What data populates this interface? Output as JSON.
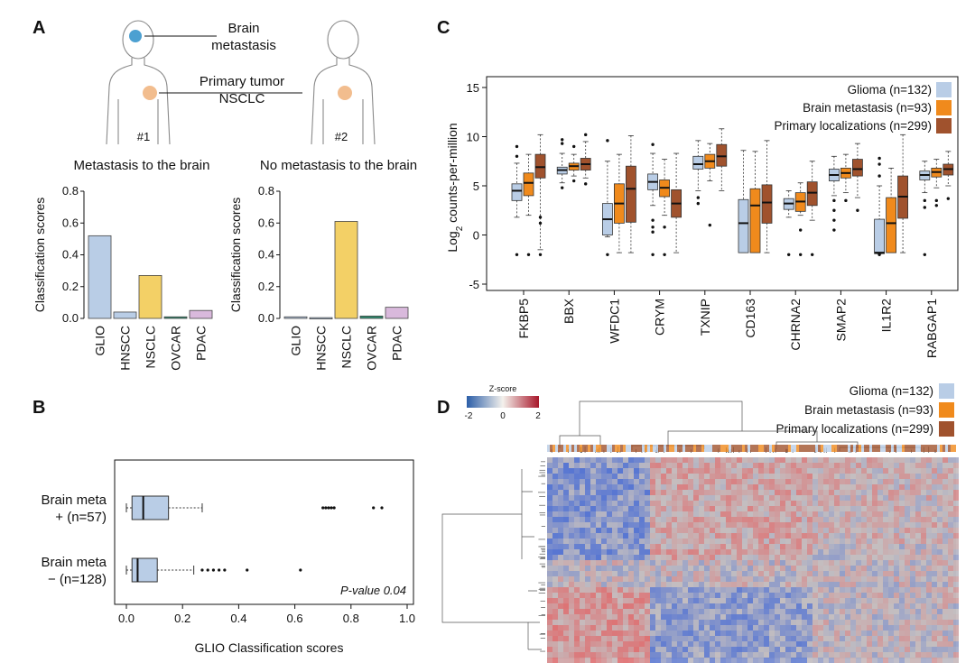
{
  "colors": {
    "glioma": "#b9cde6",
    "brain_meta": "#f08a1c",
    "primary": "#a0522d",
    "glio_bar": "#b9cde6",
    "hnscc_bar": "#b9cde6",
    "nsclc_bar": "#f3d066",
    "ovcar_bar": "#2e8b6e",
    "pdac_bar": "#d9b9dc"
  },
  "panels": {
    "a": "A",
    "b": "B",
    "c": "C",
    "d": "D"
  },
  "panelA": {
    "brain_label_1": "Brain",
    "brain_label_2": "metastasis",
    "primary_label_1": "Primary tumor",
    "primary_label_2": "NSCLC",
    "patient1": "#1",
    "patient2": "#2",
    "title1": "Metastasis to the brain",
    "title2": "No metastasis to the brain",
    "ylabel": "Classification scores"
  },
  "panelB": {
    "xlabel": "GLIO Classification scores",
    "pvalue": "P-value 0.04"
  },
  "panelC": {
    "ylabel_main": "Log",
    "ylabel_sub": "2",
    "ylabel_rest": " counts-per-million"
  },
  "legend": [
    "Glioma (n=132)",
    "Brain metastasis (n=93)",
    "Primary localizations (n=299)"
  ],
  "panelD": {
    "zscore_title": "Z-score",
    "zscore_ticks": [
      "-2",
      "0",
      "2"
    ]
  },
  "chart_data": [
    {
      "type": "bar",
      "title": "Metastasis to the brain",
      "ylabel": "Classification scores",
      "categories": [
        "GLIO",
        "HNSCC",
        "NSCLC",
        "OVCAR",
        "PDAC"
      ],
      "values": [
        0.52,
        0.04,
        0.27,
        0.01,
        0.05
      ],
      "ylim": [
        0,
        0.8
      ],
      "yticks": [
        "0.0",
        "0.2",
        "0.4",
        "0.6",
        "0.8"
      ]
    },
    {
      "type": "bar",
      "title": "No metastasis to the brain",
      "ylabel": "Classification scores",
      "categories": [
        "GLIO",
        "HNSCC",
        "NSCLC",
        "OVCAR",
        "PDAC"
      ],
      "values": [
        0.01,
        0.005,
        0.61,
        0.015,
        0.07
      ],
      "ylim": [
        0,
        0.8
      ],
      "yticks": [
        "0.0",
        "0.2",
        "0.4",
        "0.6",
        "0.8"
      ]
    },
    {
      "type": "box",
      "xlabel": "GLIO Classification scores",
      "xlim": [
        0,
        1
      ],
      "xticks": [
        "0.0",
        "0.2",
        "0.4",
        "0.6",
        "0.8",
        "1.0"
      ],
      "groups": [
        {
          "label1": "Brain meta",
          "label2": "+ (n=57)",
          "min": 0.0,
          "q1": 0.02,
          "median": 0.06,
          "q3": 0.15,
          "max": 0.27,
          "outliers": [
            0.7,
            0.71,
            0.72,
            0.73,
            0.74,
            0.88,
            0.91
          ]
        },
        {
          "label1": "Brain meta",
          "label2": "− (n=128)",
          "min": 0.0,
          "q1": 0.02,
          "median": 0.04,
          "q3": 0.11,
          "max": 0.24,
          "outliers": [
            0.27,
            0.29,
            0.31,
            0.33,
            0.35,
            0.43,
            0.62
          ]
        }
      ]
    },
    {
      "type": "box",
      "ylabel": "Log2 counts-per-million",
      "ylim": [
        -5,
        15
      ],
      "yticks": [
        "-5",
        "0",
        "5",
        "10",
        "15"
      ],
      "categories": [
        "FKBP5",
        "BBX",
        "WFDC1",
        "CRYM",
        "TXNIP",
        "CD163",
        "CHRNA2",
        "SMAP2",
        "IL1R2",
        "RABGAP1"
      ],
      "series": [
        {
          "name": "Glioma (n=132)",
          "boxes": [
            {
              "min": 1.8,
              "q1": 3.5,
              "median": 4.5,
              "q3": 5.2,
              "max": 7.3,
              "out": [
                9,
                8,
                -2
              ]
            },
            {
              "min": 5.3,
              "q1": 6.2,
              "median": 6.6,
              "q3": 6.9,
              "max": 8.3,
              "out": [
                9.7,
                9.3,
                4.8
              ]
            },
            {
              "min": -0.2,
              "q1": 0.0,
              "median": 1.6,
              "q3": 3.2,
              "max": 7.5,
              "out": [
                9.6,
                -2
              ]
            },
            {
              "min": 3.0,
              "q1": 4.6,
              "median": 5.4,
              "q3": 6.2,
              "max": 8.3,
              "out": [
                9.2,
                1.5,
                0.8,
                0.3,
                -2
              ]
            },
            {
              "min": 4.5,
              "q1": 6.7,
              "median": 7.2,
              "q3": 8.0,
              "max": 9.6,
              "out": [
                3.8,
                3.2
              ]
            },
            {
              "min": -1.8,
              "q1": -1.8,
              "median": 1.2,
              "q3": 3.6,
              "max": 8.6,
              "out": []
            },
            {
              "min": 1.8,
              "q1": 2.6,
              "median": 3.2,
              "q3": 3.7,
              "max": 4.5,
              "out": [
                -2
              ]
            },
            {
              "min": 4.0,
              "q1": 5.5,
              "median": 6.1,
              "q3": 6.7,
              "max": 8.0,
              "out": [
                3.5,
                2.5,
                1.5,
                0.5
              ]
            },
            {
              "min": -1.9,
              "q1": -1.9,
              "median": -1.8,
              "q3": 1.6,
              "max": 5.0,
              "out": [
                7.8,
                7.2,
                6.0,
                -2
              ]
            },
            {
              "min": 4.3,
              "q1": 5.6,
              "median": 6.1,
              "q3": 6.5,
              "max": 7.5,
              "out": [
                3.5,
                2.8,
                -2
              ]
            }
          ]
        },
        {
          "name": "Brain metastasis (n=93)",
          "boxes": [
            {
              "min": 2.0,
              "q1": 4.0,
              "median": 5.3,
              "q3": 6.3,
              "max": 8.2,
              "out": [
                -2
              ]
            },
            {
              "min": 6.0,
              "q1": 6.6,
              "median": 7.0,
              "q3": 7.3,
              "max": 8.2,
              "out": [
                9.0,
                5.5
              ]
            },
            {
              "min": -1.8,
              "q1": 1.2,
              "median": 3.2,
              "q3": 5.2,
              "max": 8.2,
              "out": []
            },
            {
              "min": 2.0,
              "q1": 3.9,
              "median": 4.8,
              "q3": 5.6,
              "max": 7.7,
              "out": [
                0.8,
                -2
              ]
            },
            {
              "min": 5.5,
              "q1": 6.8,
              "median": 7.5,
              "q3": 8.2,
              "max": 9.3,
              "out": [
                1.0
              ]
            },
            {
              "min": -1.8,
              "q1": -1.8,
              "median": 3.0,
              "q3": 4.7,
              "max": 8.5,
              "out": []
            },
            {
              "min": 2.0,
              "q1": 2.4,
              "median": 3.4,
              "q3": 4.3,
              "max": 5.3,
              "out": [
                0.5,
                -2
              ]
            },
            {
              "min": 4.3,
              "q1": 5.8,
              "median": 6.3,
              "q3": 6.8,
              "max": 8.2,
              "out": [
                3.5
              ]
            },
            {
              "min": -1.8,
              "q1": -1.8,
              "median": 1.2,
              "q3": 3.8,
              "max": 6.8,
              "out": []
            },
            {
              "min": 4.8,
              "q1": 5.9,
              "median": 6.4,
              "q3": 6.8,
              "max": 7.7,
              "out": [
                3.5,
                3.0
              ]
            }
          ]
        },
        {
          "name": "Primary localizations (n=299)",
          "boxes": [
            {
              "min": -1.5,
              "q1": 5.8,
              "median": 6.9,
              "q3": 8.2,
              "max": 10.2,
              "out": [
                1.8,
                1.2,
                -2
              ]
            },
            {
              "min": 5.8,
              "q1": 6.6,
              "median": 7.2,
              "q3": 7.8,
              "max": 9.5,
              "out": [
                10.2,
                5.2
              ]
            },
            {
              "min": -1.8,
              "q1": 1.3,
              "median": 4.7,
              "q3": 7.0,
              "max": 10.1,
              "out": []
            },
            {
              "min": -1.8,
              "q1": 1.8,
              "median": 3.2,
              "q3": 4.6,
              "max": 8.3,
              "out": []
            },
            {
              "min": 4.5,
              "q1": 7.0,
              "median": 8.0,
              "q3": 9.2,
              "max": 10.8,
              "out": []
            },
            {
              "min": -1.8,
              "q1": 1.2,
              "median": 3.3,
              "q3": 5.1,
              "max": 9.6,
              "out": []
            },
            {
              "min": 1.5,
              "q1": 3.0,
              "median": 4.3,
              "q3": 5.4,
              "max": 7.5,
              "out": [
                -2
              ]
            },
            {
              "min": 3.8,
              "q1": 6.0,
              "median": 6.7,
              "q3": 7.7,
              "max": 9.3,
              "out": [
                2.5
              ]
            },
            {
              "min": -1.8,
              "q1": 1.7,
              "median": 3.9,
              "q3": 6.0,
              "max": 10.2,
              "out": []
            },
            {
              "min": 5.0,
              "q1": 6.1,
              "median": 6.7,
              "q3": 7.2,
              "max": 8.5,
              "out": [
                3.7
              ]
            }
          ]
        }
      ]
    },
    {
      "type": "heatmap",
      "legend": "Z-score",
      "scale": {
        "min": -2,
        "mid": 0,
        "max": 2
      }
    }
  ]
}
